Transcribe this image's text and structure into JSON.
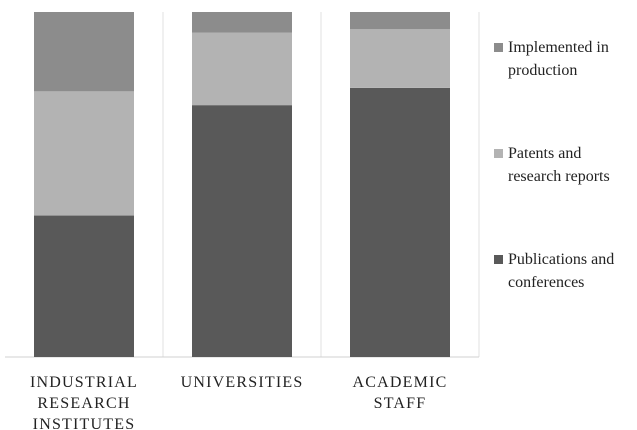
{
  "chart_data": {
    "type": "stacked_bar",
    "categories": [
      "INDUSTRIAL RESEARCH INSTITUTES",
      "UNIVERSITIES",
      "ACADEMIC STAFF"
    ],
    "series": [
      {
        "name": "Publications and conferences",
        "color": "#595959",
        "values": [
          41,
          73,
          78
        ]
      },
      {
        "name": "Patents and research reports",
        "color": "#b3b3b3",
        "values": [
          36,
          21,
          17
        ]
      },
      {
        "name": "Implemented in production",
        "color": "#8c8c8c",
        "values": [
          23,
          6,
          5
        ]
      }
    ],
    "ylim": [
      0,
      100
    ],
    "legend": "right"
  }
}
